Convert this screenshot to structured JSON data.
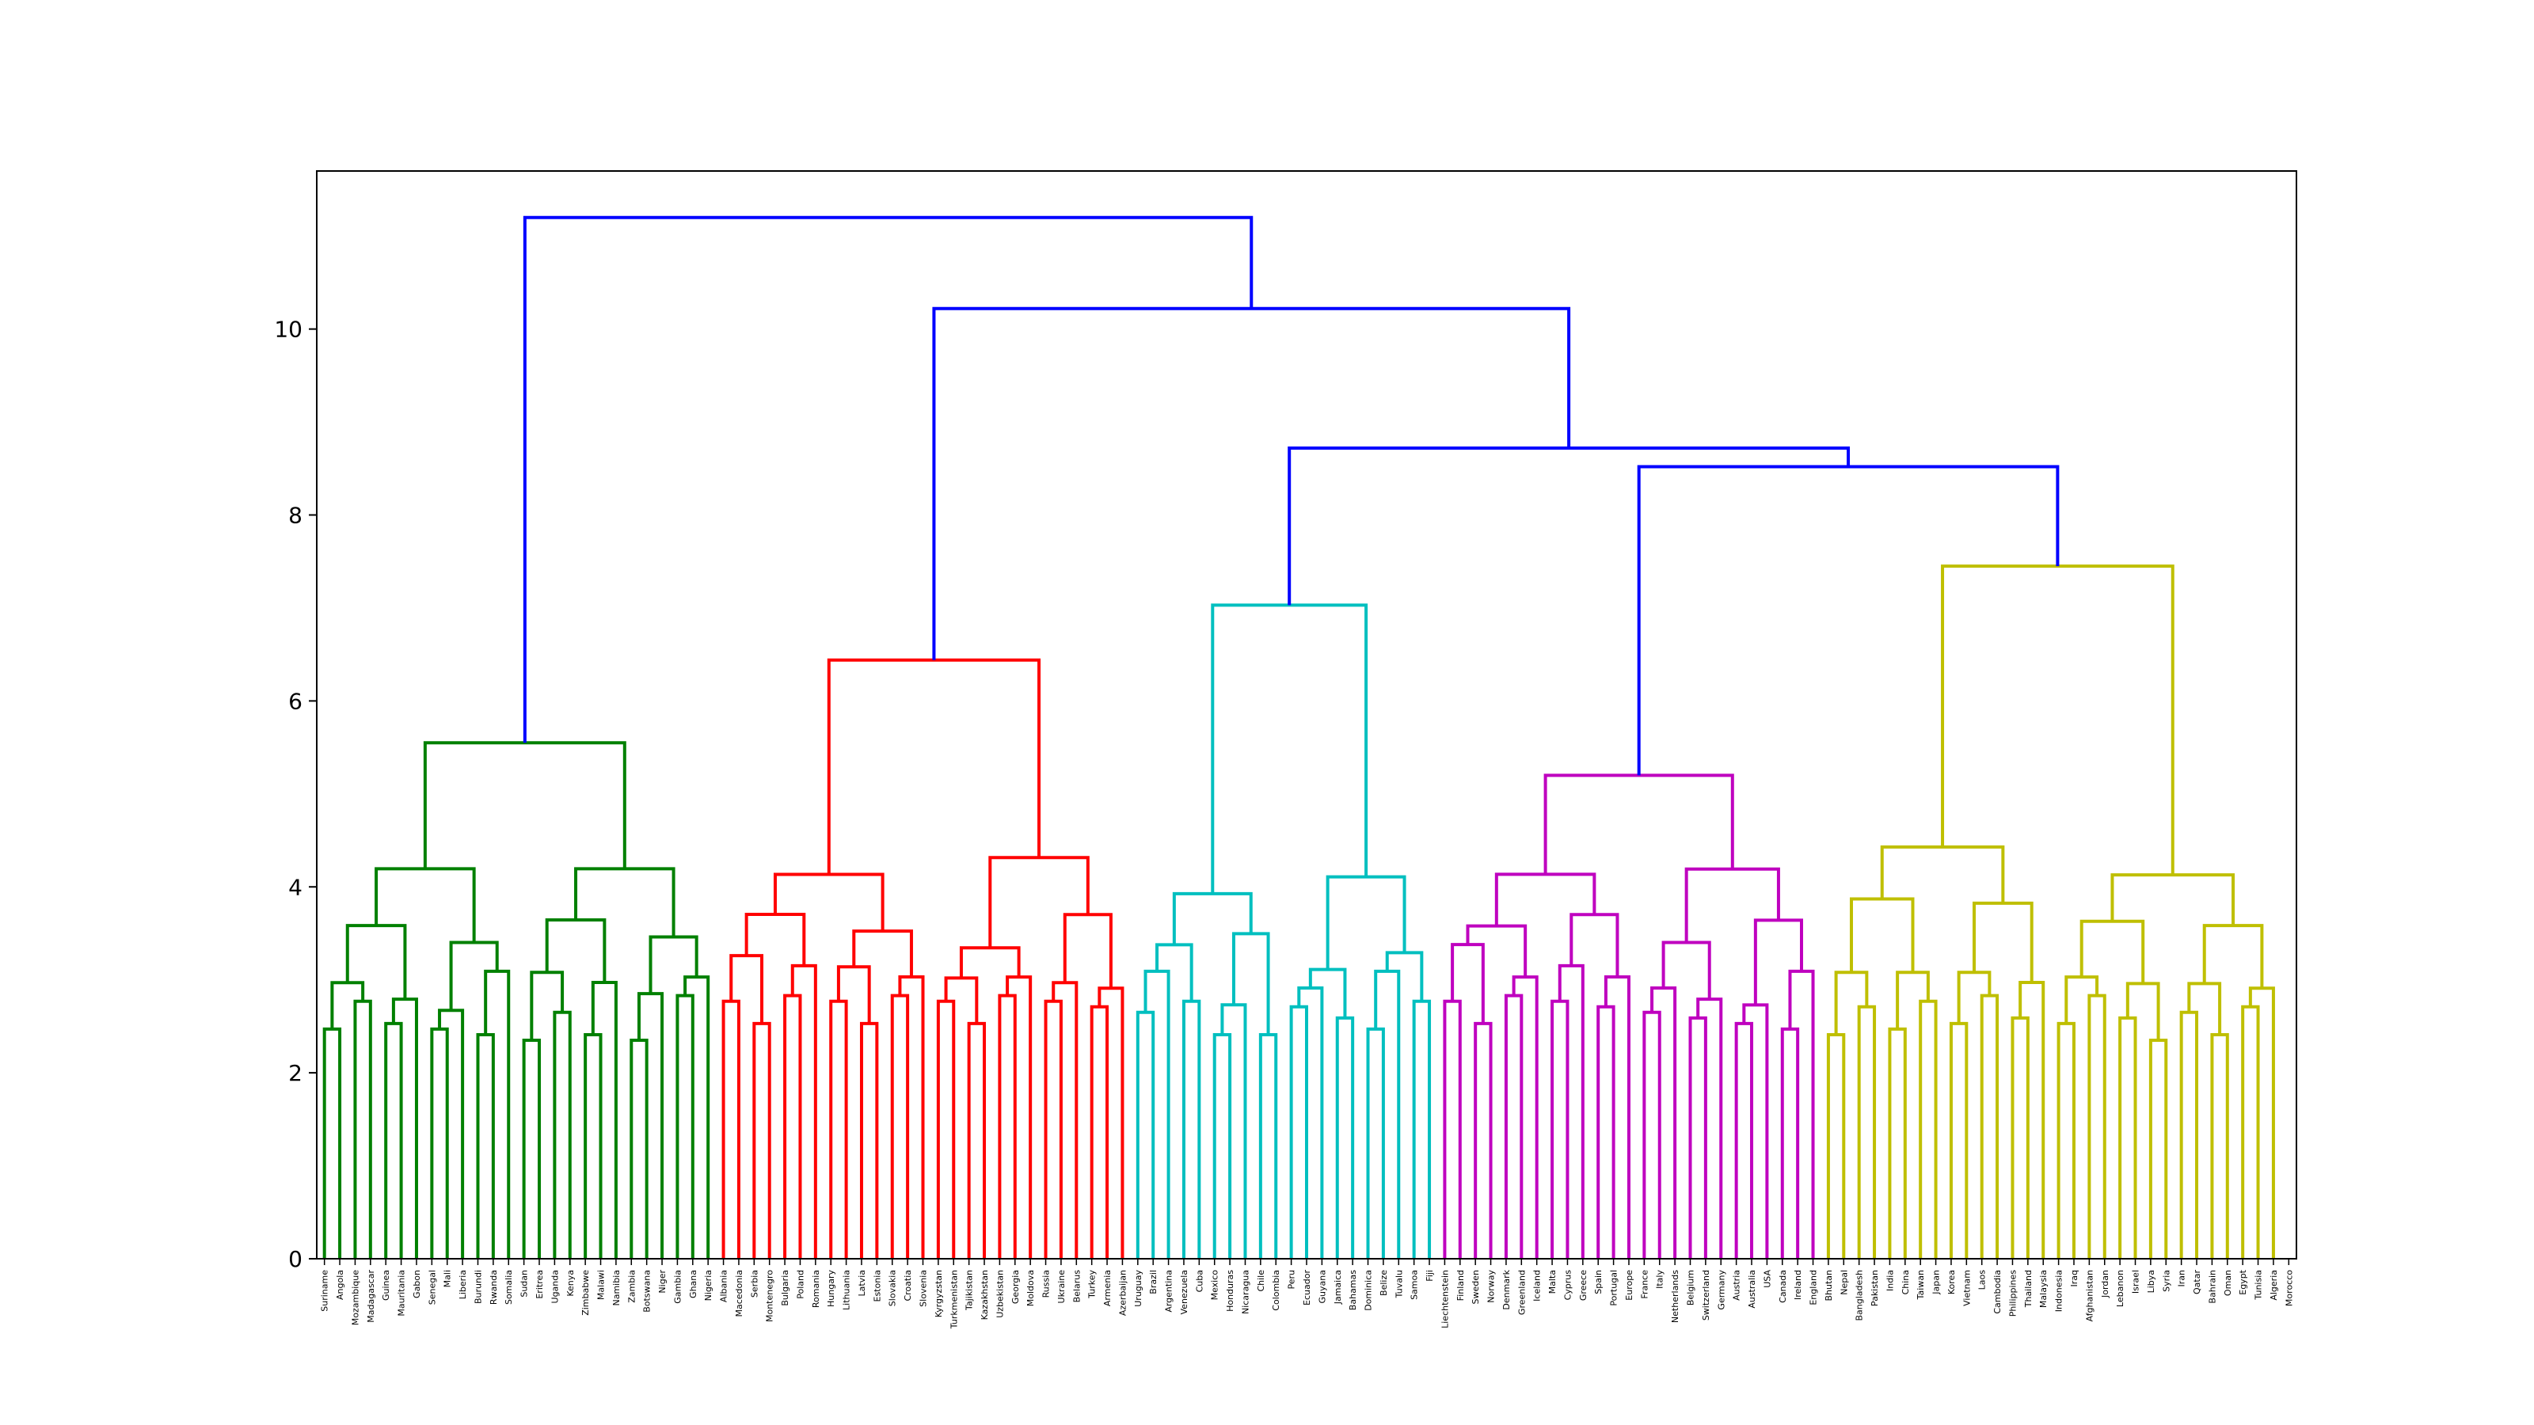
{
  "chart_data": {
    "type": "dendrogram",
    "title": "",
    "xlabel": "",
    "ylabel": "",
    "ylim": [
      0,
      11.7
    ],
    "yticks": [
      0,
      2,
      4,
      6,
      8,
      10
    ],
    "grid": false,
    "link_colors": {
      "C0": "#0000ff",
      "C1": "#008000",
      "C2": "#ff0000",
      "C3": "#00bfbf",
      "C4": "#bf00bf",
      "C5": "#bfbf00"
    },
    "leaves": [
      "Suriname",
      "Angola",
      "Mozambique",
      "Madagascar",
      "Guinea",
      "Mauritania",
      "Gabon",
      "Senegal",
      "Mali",
      "Liberia",
      "Burundi",
      "Rwanda",
      "Somalia",
      "Sudan",
      "Eritrea",
      "Uganda",
      "Kenya",
      "Zimbabwe",
      "Malawi",
      "Namibia",
      "Zambia",
      "Botswana",
      "Niger",
      "Gambia",
      "Ghana",
      "Nigeria",
      "Albania",
      "Macedonia",
      "Serbia",
      "Montenegro",
      "Bulgaria",
      "Poland",
      "Romania",
      "Hungary",
      "Lithuania",
      "Latvia",
      "Estonia",
      "Slovakia",
      "Croatia",
      "Slovenia",
      "Kyrgyzstan",
      "Turkmenistan",
      "Tajikistan",
      "Kazakhstan",
      "Uzbekistan",
      "Georgia",
      "Moldova",
      "Russia",
      "Ukraine",
      "Belarus",
      "Turkey",
      "Armenia",
      "Azerbaijan",
      "Uruguay",
      "Brazil",
      "Argentina",
      "Venezuela",
      "Cuba",
      "Mexico",
      "Honduras",
      "Nicaragua",
      "Chile",
      "Colombia",
      "Peru",
      "Ecuador",
      "Guyana",
      "Jamaica",
      "Bahamas",
      "Dominica",
      "Belize",
      "Tuvalu",
      "Samoa",
      "Fiji",
      "Liechtenstein",
      "Finland",
      "Sweden",
      "Norway",
      "Denmark",
      "Greenland",
      "Iceland",
      "Malta",
      "Cyprus",
      "Greece",
      "Spain",
      "Portugal",
      "Europe",
      "France",
      "Italy",
      "Netherlands",
      "Belgium",
      "Switzerland",
      "Germany",
      "Austria",
      "Australia",
      "USA",
      "Canada",
      "Ireland",
      "England",
      "Bhutan",
      "Nepal",
      "Bangladesh",
      "Pakistan",
      "India",
      "China",
      "Taiwan",
      "Japan",
      "Korea",
      "Vietnam",
      "Laos",
      "Cambodia",
      "Philippines",
      "Thailand",
      "Malaysia",
      "Indonesia",
      "Iraq",
      "Afghanistan",
      "Jordan",
      "Lebanon",
      "Israel",
      "Libya",
      "Syria",
      "Iran",
      "Qatar",
      "Bahrain",
      "Oman",
      "Egypt",
      "Tunisia",
      "Algeria",
      "Morocco"
    ],
    "merges": [
      [
        1,
        2,
        2.44,
        "C1"
      ],
      [
        0,
        128,
        3.38,
        "C1"
      ],
      [
        3,
        129,
        3.75,
        "C1"
      ],
      [
        4,
        130,
        3.16,
        "C1"
      ],
      [
        7,
        8,
        2.34,
        "C1"
      ],
      [
        6,
        131,
        2.71,
        "C1"
      ],
      [
        5,
        132,
        3.28,
        "C1"
      ],
      [
        133,
        134,
        3.48,
        "C1"
      ],
      [
        10,
        11,
        2.57,
        "C1"
      ],
      [
        9,
        135,
        3.16,
        "C1"
      ],
      [
        13,
        14,
        2.75,
        "C1"
      ],
      [
        12,
        136,
        3.36,
        "C1"
      ],
      [
        15,
        16,
        2.13,
        "C1"
      ],
      [
        17,
        138,
        3.2,
        "C1"
      ],
      [
        20,
        21,
        1.81,
        "C1"
      ],
      [
        19,
        139,
        2.47,
        "C1"
      ],
      [
        18,
        140,
        2.9,
        "C1"
      ],
      [
        137,
        141,
        3.0,
        "C1"
      ],
      [
        24,
        25,
        2.34,
        "C1"
      ],
      [
        23,
        142,
        2.88,
        "C1"
      ],
      [
        22,
        143,
        4.03,
        "C1"
      ],
      [
        144,
        145,
        4.55,
        "C1"
      ],
      [
        146,
        147,
        5.33,
        "C1"
      ],
      [
        148,
        149,
        5.55,
        "C1"
      ],
      [
        150,
        151,
        5.55,
        "C1"
      ],
      [
        28,
        29,
        2.57,
        "C2"
      ],
      [
        27,
        152,
        2.87,
        "C2"
      ],
      [
        26,
        153,
        2.31,
        "C2"
      ],
      [
        32,
        33,
        1.94,
        "C2"
      ],
      [
        31,
        154,
        2.23,
        "C2"
      ],
      [
        30,
        155,
        2.49,
        "C2"
      ],
      [
        35,
        36,
        1.97,
        "C2"
      ],
      [
        34,
        157,
        2.23,
        "C2"
      ],
      [
        38,
        39,
        2.1,
        "C2"
      ],
      [
        37,
        159,
        2.36,
        "C2"
      ],
      [
        158,
        160,
        3.13,
        "C2"
      ],
      [
        156,
        161,
        3.3,
        "C2"
      ],
      [
        162,
        163,
        3.82,
        "C2"
      ],
      [
        43,
        44,
        2.25,
        "C2"
      ],
      [
        42,
        165,
        2.42,
        "C2"
      ],
      [
        41,
        166,
        2.61,
        "C2"
      ],
      [
        40,
        167,
        3.13,
        "C2"
      ],
      [
        47,
        48,
        1.99,
        "C2"
      ],
      [
        46,
        169,
        2.27,
        "C2"
      ],
      [
        45,
        170,
        2.56,
        "C2"
      ],
      [
        51,
        52,
        2.1,
        "C2"
      ],
      [
        50,
        172,
        2.88,
        "C2"
      ],
      [
        49,
        173,
        3.55,
        "C2"
      ],
      [
        171,
        174,
        3.6,
        "C2"
      ],
      [
        168,
        175,
        4.45,
        "C2"
      ],
      [
        164,
        176,
        6.44,
        "C2"
      ],
      [
        53,
        54,
        2.1,
        "C3"
      ],
      [
        56,
        57,
        2.67,
        "C3"
      ],
      [
        62,
        63,
        2.13,
        "C3"
      ],
      [
        61,
        179,
        2.38,
        "C3"
      ],
      [
        60,
        180,
        2.52,
        "C3"
      ],
      [
        58,
        59,
        2.45,
        "C3"
      ],
      [
        181,
        182,
        3.0,
        "C3"
      ],
      [
        183,
        183,
        3.15,
        "C3"
      ],
      [
        178,
        184,
        3.52,
        "C3"
      ],
      [
        177,
        185,
        4.0,
        "C3"
      ],
      [
        64,
        65,
        2.34,
        "C3"
      ],
      [
        68,
        69,
        2.62,
        "C3"
      ],
      [
        67,
        187,
        2.88,
        "C3"
      ],
      [
        186,
        188,
        3.02,
        "C3"
      ],
      [
        71,
        72,
        3.3,
        "C3"
      ],
      [
        70,
        190,
        4.4,
        "C3"
      ],
      [
        189,
        191,
        5.5,
        "C3"
      ],
      [
        186,
        192,
        7.03,
        "C3"
      ],
      [
        74,
        75,
        1.86,
        "C4"
      ],
      [
        76,
        77,
        1.93,
        "C4"
      ],
      [
        194,
        195,
        2.5,
        "C4"
      ],
      [
        78,
        79,
        3.02,
        "C4"
      ],
      [
        196,
        197,
        3.75,
        "C4"
      ],
      [
        73,
        198,
        4.55,
        "C4"
      ],
      [
        80,
        81,
        2.75,
        "C4"
      ],
      [
        83,
        84,
        2.22,
        "C4"
      ],
      [
        82,
        201,
        3.0,
        "C4"
      ],
      [
        200,
        202,
        3.8,
        "C4"
      ],
      [
        86,
        87,
        2.42,
        "C4"
      ],
      [
        85,
        204,
        2.62,
        "C4"
      ],
      [
        91,
        92,
        1.97,
        "C4"
      ],
      [
        90,
        206,
        2.25,
        "C4"
      ],
      [
        88,
        89,
        2.03,
        "C4"
      ],
      [
        207,
        208,
        3.0,
        "C4"
      ],
      [
        205,
        209,
        3.07,
        "C4"
      ],
      [
        94,
        95,
        2.73,
        "C4"
      ],
      [
        93,
        211,
        2.85,
        "C4"
      ],
      [
        96,
        97,
        2.87,
        "C4"
      ],
      [
        212,
        213,
        3.42,
        "C4"
      ],
      [
        210,
        214,
        4.18,
        "C4"
      ],
      [
        203,
        215,
        4.78,
        "C4"
      ],
      [
        199,
        216,
        5.2,
        "C4"
      ],
      [
        98,
        99,
        2.08,
        "C5"
      ],
      [
        101,
        102,
        2.38,
        "C5"
      ],
      [
        100,
        219,
        2.52,
        "C5"
      ],
      [
        218,
        220,
        3.82,
        "C5"
      ],
      [
        103,
        104,
        2.36,
        "C5"
      ],
      [
        105,
        106,
        2.5,
        "C5"
      ],
      [
        222,
        223,
        3.05,
        "C5"
      ],
      [
        108,
        109,
        2.3,
        "C5"
      ],
      [
        107,
        225,
        2.83,
        "C5"
      ],
      [
        112,
        113,
        2.28,
        "C5"
      ],
      [
        111,
        227,
        2.52,
        "C5"
      ],
      [
        110,
        228,
        2.97,
        "C5"
      ],
      [
        226,
        229,
        3.92,
        "C5"
      ],
      [
        224,
        230,
        4.52,
        "C5"
      ],
      [
        221,
        231,
        5.35,
        "C5"
      ],
      [
        114,
        115,
        2.25,
        "C5"
      ],
      [
        117,
        118,
        2.7,
        "C5"
      ],
      [
        116,
        233,
        3.18,
        "C5"
      ],
      [
        120,
        121,
        2.34,
        "C5"
      ],
      [
        119,
        235,
        3.58,
        "C5"
      ],
      [
        234,
        236,
        3.95,
        "C5"
      ],
      [
        232,
        237,
        4.1,
        "C5"
      ],
      [
        123,
        124,
        2.27,
        "C5"
      ],
      [
        122,
        239,
        2.48,
        "C5"
      ],
      [
        127,
        128,
        2.36,
        "C5"
      ],
      [
        126,
        241,
        2.8,
        "C5"
      ],
      [
        240,
        242,
        4.3,
        "C5"
      ],
      [
        238,
        243,
        5.45,
        "C5"
      ],
      [
        238,
        244,
        7.45,
        "C5"
      ]
    ],
    "links": [
      {
        "x": [
          0.5,
          0.5,
          1.5,
          1.5
        ],
        "y": [
          0,
          2.44,
          2.44,
          0
        ],
        "c": "C1"
      },
      {
        "x": [
          -0.5,
          -0.5,
          1.0,
          1.0
        ],
        "y": [
          0,
          3.38,
          3.38,
          2.44
        ],
        "c": "C1"
      }
    ]
  }
}
